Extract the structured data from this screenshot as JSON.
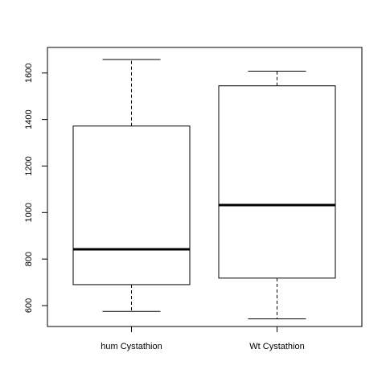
{
  "chart_data": {
    "type": "boxplot",
    "title": "",
    "xlabel": "",
    "ylabel": "",
    "categories": [
      "hum Cystathion",
      "Wt Cystathion"
    ],
    "series": [
      {
        "name": "hum Cystathion",
        "whisker_low": 575,
        "q1": 690,
        "median": 842,
        "q3": 1372,
        "whisker_high": 1658
      },
      {
        "name": "Wt Cystathion",
        "whisker_low": 543,
        "q1": 718,
        "median": 1032,
        "q3": 1545,
        "whisker_high": 1608
      }
    ],
    "ylim": [
      510,
      1710
    ],
    "yticks": [
      600,
      800,
      1000,
      1200,
      1400,
      1600
    ],
    "ytick_labels": [
      "600",
      "800",
      "1000",
      "1200",
      "1400",
      "1600"
    ],
    "grid": false,
    "colors": {
      "box_stroke": "#000000",
      "median": "#000000",
      "whisker": "#000000",
      "background": "#ffffff"
    }
  }
}
